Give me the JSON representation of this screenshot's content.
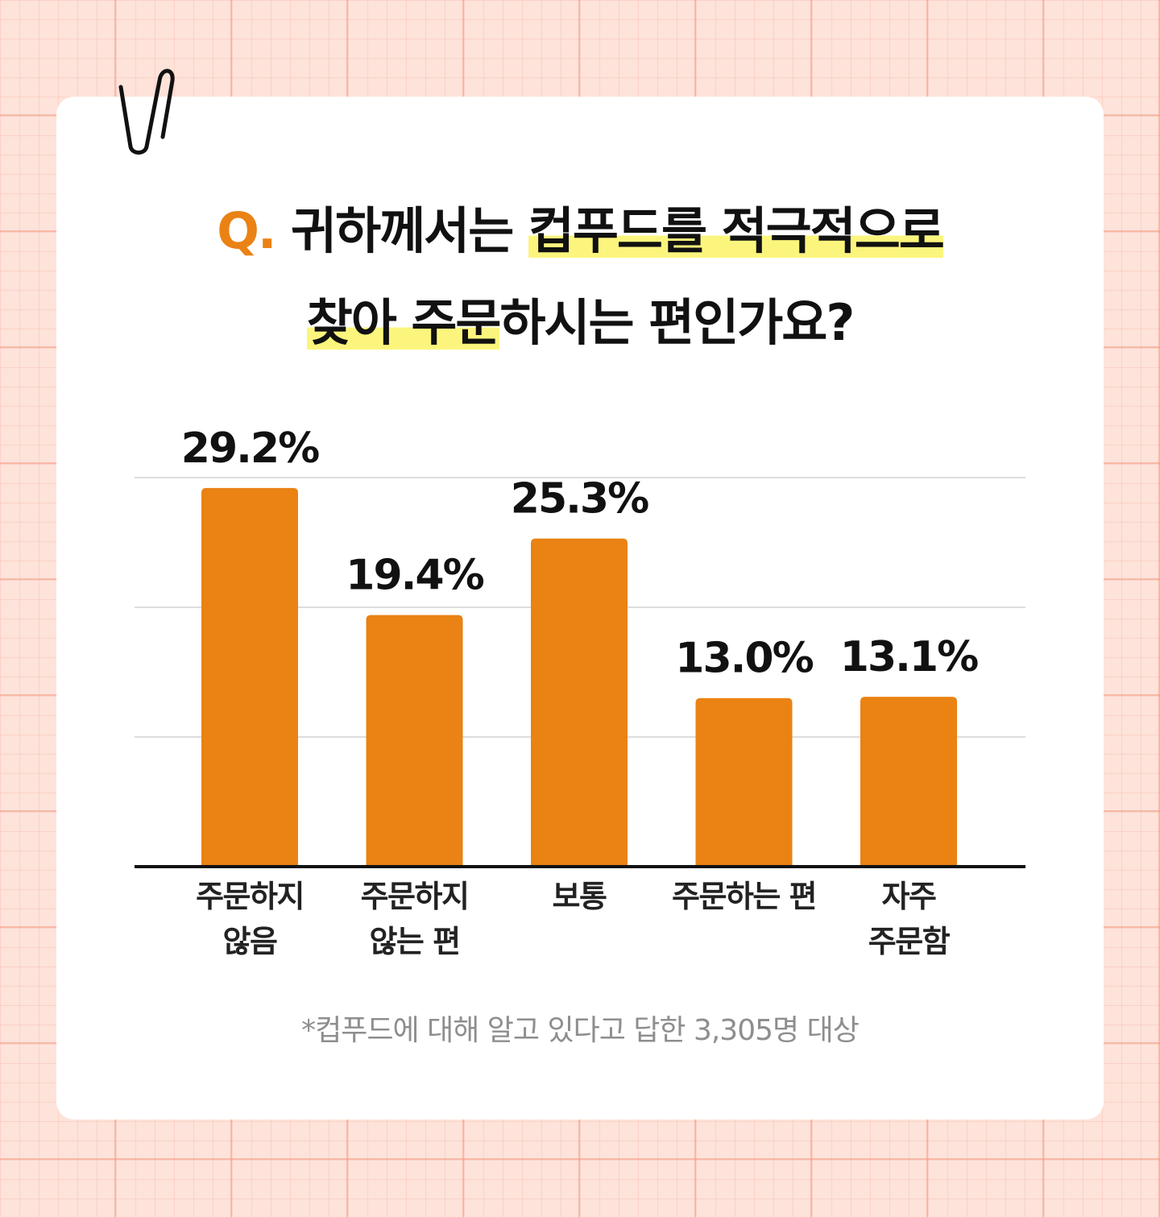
{
  "title": {
    "q_mark": "Q.",
    "line1_plain": " 귀하께서는 ",
    "line1_highlight": "컵푸드를 적극적으로",
    "line2_highlight": "찾아 주문",
    "line2_plain": "하시는 편인가요?"
  },
  "colors": {
    "bar": "#ea8214",
    "accent": "#ea8214",
    "highlight": "#fcf57d",
    "grid": "#dddddd",
    "axis": "#111111"
  },
  "chart_data": {
    "type": "bar",
    "categories": [
      [
        "주문하지",
        "않음"
      ],
      [
        "주문하지",
        "않는 편"
      ],
      [
        "보통"
      ],
      [
        "주문하는 편"
      ],
      [
        "자주",
        "주문함"
      ]
    ],
    "values": [
      29.2,
      19.4,
      25.3,
      13.0,
      13.1
    ],
    "data_labels": [
      "29.2%",
      "19.4%",
      "25.3%",
      "13.0%",
      "13.1%"
    ],
    "ylim": [
      0,
      30
    ],
    "grid": true,
    "title": "",
    "xlabel": "",
    "ylabel": ""
  },
  "footnote": "*컵푸드에 대해 알고 있다고 답한 3,305명 대상"
}
